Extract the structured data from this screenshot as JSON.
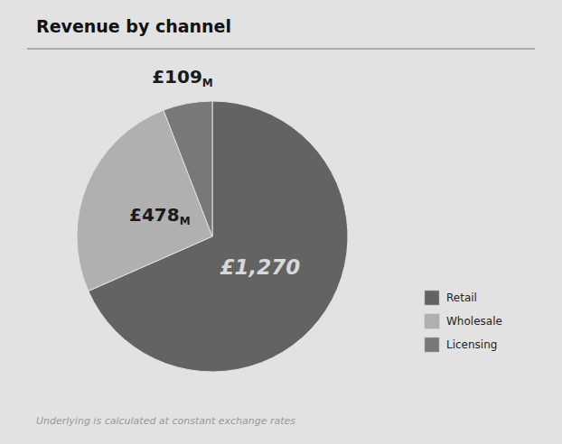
{
  "chart_data": {
    "type": "pie",
    "title": "Revenue by channel",
    "categories": [
      "Retail",
      "Wholesale",
      "Licensing"
    ],
    "values": [
      1270,
      478,
      109
    ],
    "value_labels": [
      "£1,270",
      "£478M",
      "£109M"
    ],
    "data_labels": true,
    "colors": [
      "#636363",
      "#b0b0b0",
      "#787878"
    ],
    "legend": "lower right",
    "annotations": [
      "Underlying is calculated at constant exchange rates"
    ]
  }
}
